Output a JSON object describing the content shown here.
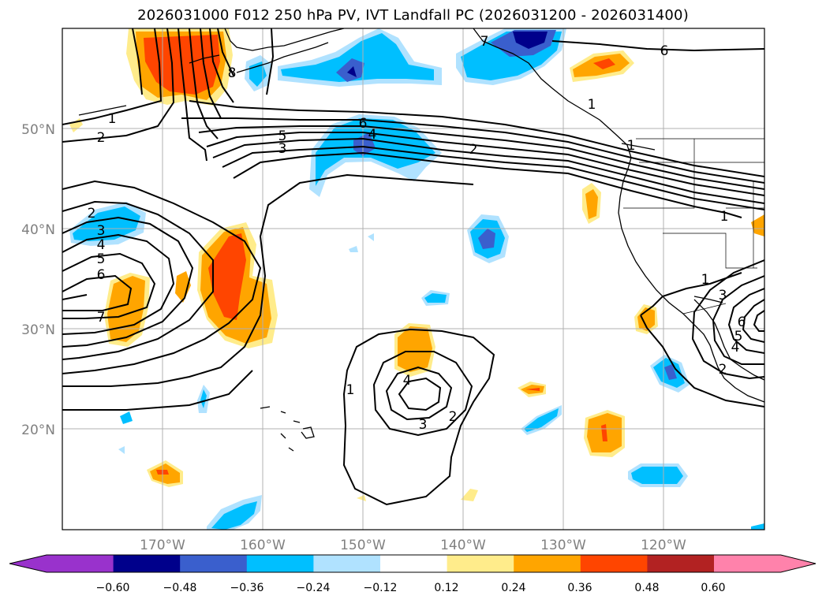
{
  "title": "2026031000 F012 250 hPa PV, IVT Landfall PC (2026031200 - 2026031400)",
  "map": {
    "lon_range": [
      -180,
      -110
    ],
    "lat_range": [
      10,
      60
    ],
    "lat_labels": [
      "50°N",
      "40°N",
      "30°N",
      "20°N"
    ],
    "lon_labels": [
      "170°W",
      "160°W",
      "150°W",
      "140°W",
      "130°W",
      "120°W"
    ],
    "gridline_color": "#b0b0b0",
    "tick_label_color": "#808080"
  },
  "contour_labels": [
    "1",
    "2",
    "8",
    "5",
    "3",
    "6",
    "4",
    "2",
    "2",
    "3",
    "4",
    "5",
    "6",
    "7",
    "1",
    "4",
    "3",
    "2",
    "1",
    "1",
    "3",
    "6",
    "5",
    "4",
    "2",
    "7",
    "6",
    "1",
    "1"
  ],
  "colorbar": {
    "ticks": [
      "−0.60",
      "−0.48",
      "−0.36",
      "−0.24",
      "−0.12",
      "0.12",
      "0.24",
      "0.36",
      "0.48",
      "0.60"
    ],
    "colors": [
      "#9932cc",
      "#00008b",
      "#3a5fcd",
      "#00bfff",
      "#b0e2ff",
      "#ffffff",
      "#ffec8b",
      "#ffa500",
      "#ff4500",
      "#b22222",
      "#ff82ab"
    ]
  }
}
